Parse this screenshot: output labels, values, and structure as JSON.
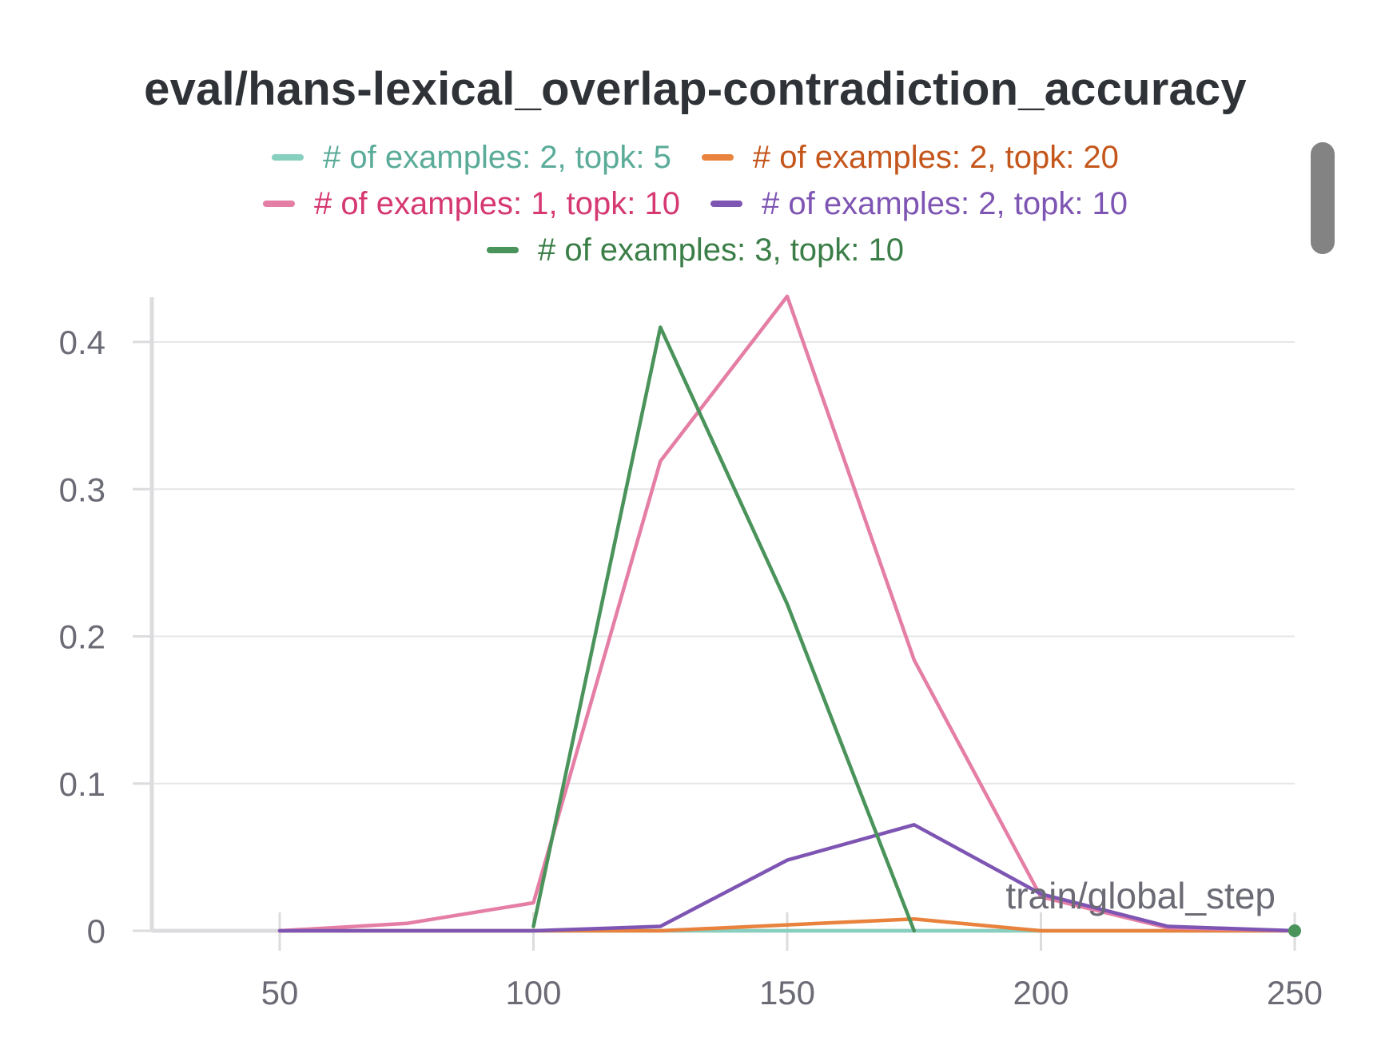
{
  "chart_data": {
    "type": "line",
    "title": "eval/hans-lexical_overlap-contradiction_accuracy",
    "xlabel": "train/global_step",
    "ylabel": "",
    "xlim": [
      25,
      250
    ],
    "ylim": [
      0,
      0.43
    ],
    "x_ticks": [
      "50",
      "100",
      "150",
      "200",
      "250"
    ],
    "y_ticks": [
      "0",
      "0.1",
      "0.2",
      "0.3",
      "0.4"
    ],
    "grid": true,
    "legend_position": "top-center",
    "series": [
      {
        "name": "# of examples: 2, topk: 5",
        "color": "#87cfbe",
        "text_color": "#5aab98",
        "x": [
          50,
          75,
          100,
          125,
          150,
          175,
          200,
          225,
          250
        ],
        "y": [
          0,
          0,
          0,
          0,
          0,
          0,
          0,
          0,
          0
        ]
      },
      {
        "name": "# of examples: 2, topk: 20",
        "color": "#e8823d",
        "text_color": "#c4561c",
        "x": [
          50,
          75,
          100,
          125,
          150,
          175,
          200,
          225,
          250
        ],
        "y": [
          0,
          0,
          0,
          0,
          0.004,
          0.008,
          0,
          0,
          0
        ]
      },
      {
        "name": "# of examples: 1, topk: 10",
        "color": "#e57ea5",
        "text_color": "#d63872",
        "x": [
          50,
          75,
          100,
          125,
          150,
          175,
          200,
          225,
          250
        ],
        "y": [
          0,
          0.005,
          0.019,
          0.319,
          0.431,
          0.184,
          0.023,
          0.002,
          0
        ]
      },
      {
        "name": "# of examples: 2, topk: 10",
        "color": "#7e55b3",
        "text_color": "#7e55b3",
        "x": [
          50,
          75,
          100,
          125,
          150,
          175,
          200,
          225,
          250
        ],
        "y": [
          0,
          0,
          0,
          0.003,
          0.048,
          0.072,
          0.025,
          0.003,
          0
        ]
      },
      {
        "name": "# of examples: 3, topk: 10",
        "color": "#4a935a",
        "text_color": "#3b7e48",
        "x": [
          100,
          125,
          150,
          175
        ],
        "y": [
          0.003,
          0.41,
          0.222,
          0
        ]
      }
    ]
  }
}
